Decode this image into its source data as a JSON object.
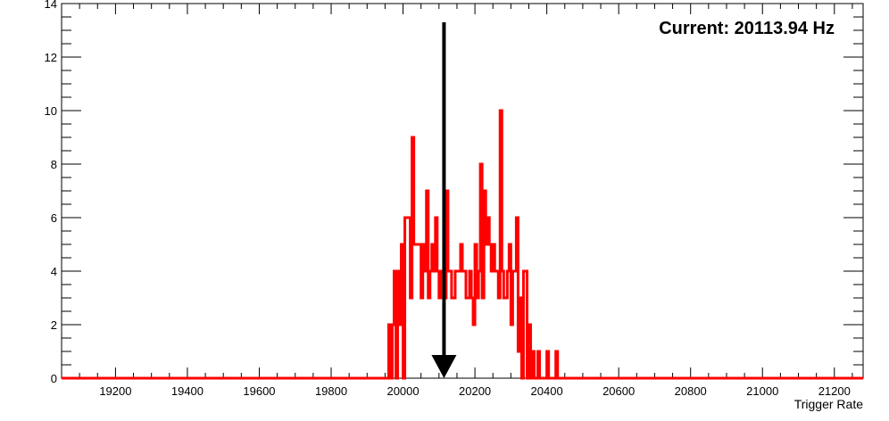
{
  "chart_data": {
    "type": "histogram",
    "title": "",
    "xlabel": "Trigger Rate",
    "ylabel": "",
    "xlim": [
      19050,
      21280
    ],
    "ylim": [
      0,
      14
    ],
    "x_ticks": [
      19200,
      19400,
      19600,
      19800,
      20000,
      20200,
      20400,
      20600,
      20800,
      21000,
      21200
    ],
    "y_ticks": [
      0,
      2,
      4,
      6,
      8,
      10,
      12,
      14
    ],
    "grid": false,
    "bin_width": 5,
    "series": [
      {
        "color": "#ff0000",
        "x": [
          19955,
          19960,
          19965,
          19970,
          19975,
          19980,
          19985,
          19990,
          19995,
          20000,
          20005,
          20010,
          20015,
          20020,
          20025,
          20030,
          20035,
          20040,
          20045,
          20050,
          20055,
          20060,
          20065,
          20070,
          20075,
          20080,
          20085,
          20090,
          20095,
          20100,
          20105,
          20110,
          20115,
          20120,
          20125,
          20130,
          20135,
          20140,
          20145,
          20150,
          20155,
          20160,
          20165,
          20170,
          20175,
          20180,
          20185,
          20190,
          20195,
          20200,
          20205,
          20210,
          20215,
          20220,
          20225,
          20230,
          20235,
          20240,
          20245,
          20250,
          20255,
          20260,
          20265,
          20270,
          20275,
          20280,
          20285,
          20290,
          20295,
          20300,
          20305,
          20310,
          20315,
          20320,
          20325,
          20330,
          20335,
          20340,
          20345,
          20350,
          20355,
          20360,
          20365,
          20370,
          20375,
          20380,
          20385,
          20390,
          20395,
          20400,
          20405,
          20410,
          20415,
          20420,
          20425,
          20430
        ],
        "values": [
          0,
          2,
          0,
          2,
          4,
          0,
          4,
          2,
          5,
          0,
          6,
          6,
          6,
          3,
          9,
          5,
          5,
          5,
          5,
          3,
          5,
          4,
          7,
          3,
          4,
          5,
          4,
          6,
          4,
          3,
          4,
          4,
          3,
          7,
          4,
          4,
          3,
          3,
          4,
          4,
          4,
          5,
          4,
          4,
          3,
          3,
          4,
          3,
          2,
          5,
          3,
          4,
          8,
          3,
          7,
          5,
          6,
          5,
          4,
          5,
          4,
          4,
          3,
          10,
          4,
          3,
          3,
          4,
          5,
          2,
          4,
          4,
          6,
          1,
          3,
          0,
          4,
          4,
          0,
          2,
          0,
          1,
          0,
          0,
          1,
          0,
          0,
          0,
          0,
          1,
          0,
          0,
          0,
          0,
          1,
          0
        ]
      }
    ],
    "annotations": [
      {
        "type": "arrow",
        "x": 20113.94,
        "y_from": 13.3,
        "y_to": 0,
        "color": "#000000"
      }
    ],
    "legend": "none"
  },
  "annotation_text": "Current: 20113.94 Hz"
}
